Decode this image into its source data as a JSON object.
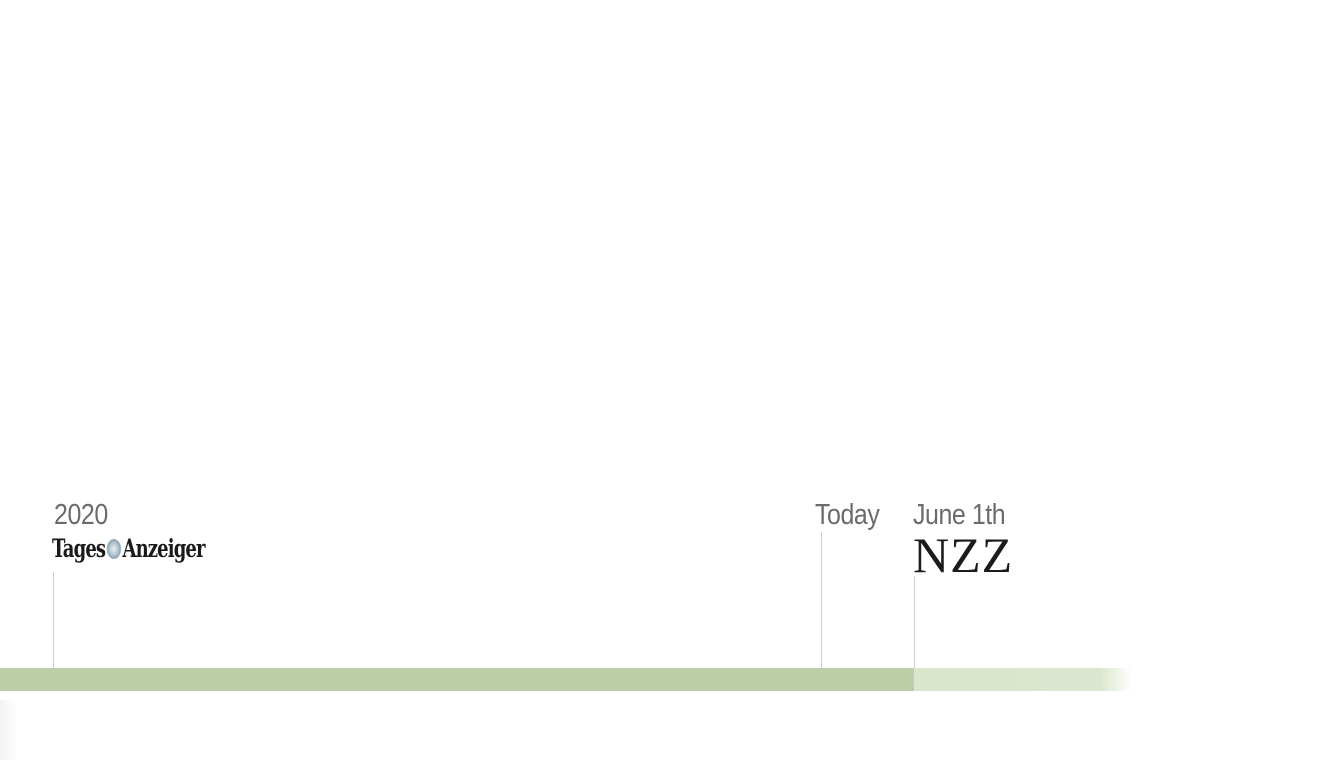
{
  "timeline": {
    "markers": [
      {
        "id": "start",
        "date_label": "2020",
        "logo": "Tages Anzeiger"
      },
      {
        "id": "today",
        "date_label": "Today"
      },
      {
        "id": "launch",
        "date_label": "June 1th",
        "logo": "NZZ"
      }
    ],
    "progress": {
      "elapsed_fraction": 0.81,
      "segment_count": 2
    },
    "colors": {
      "elapsed_bar": "#bccfa9",
      "upcoming_bar": "#d9e6cc",
      "marker_line": "#cfcfcf",
      "label_text": "#6b6b6b",
      "logo_text": "#1a1a1a"
    },
    "icons": {
      "tages_emblem": "globe-emblem-icon"
    }
  }
}
